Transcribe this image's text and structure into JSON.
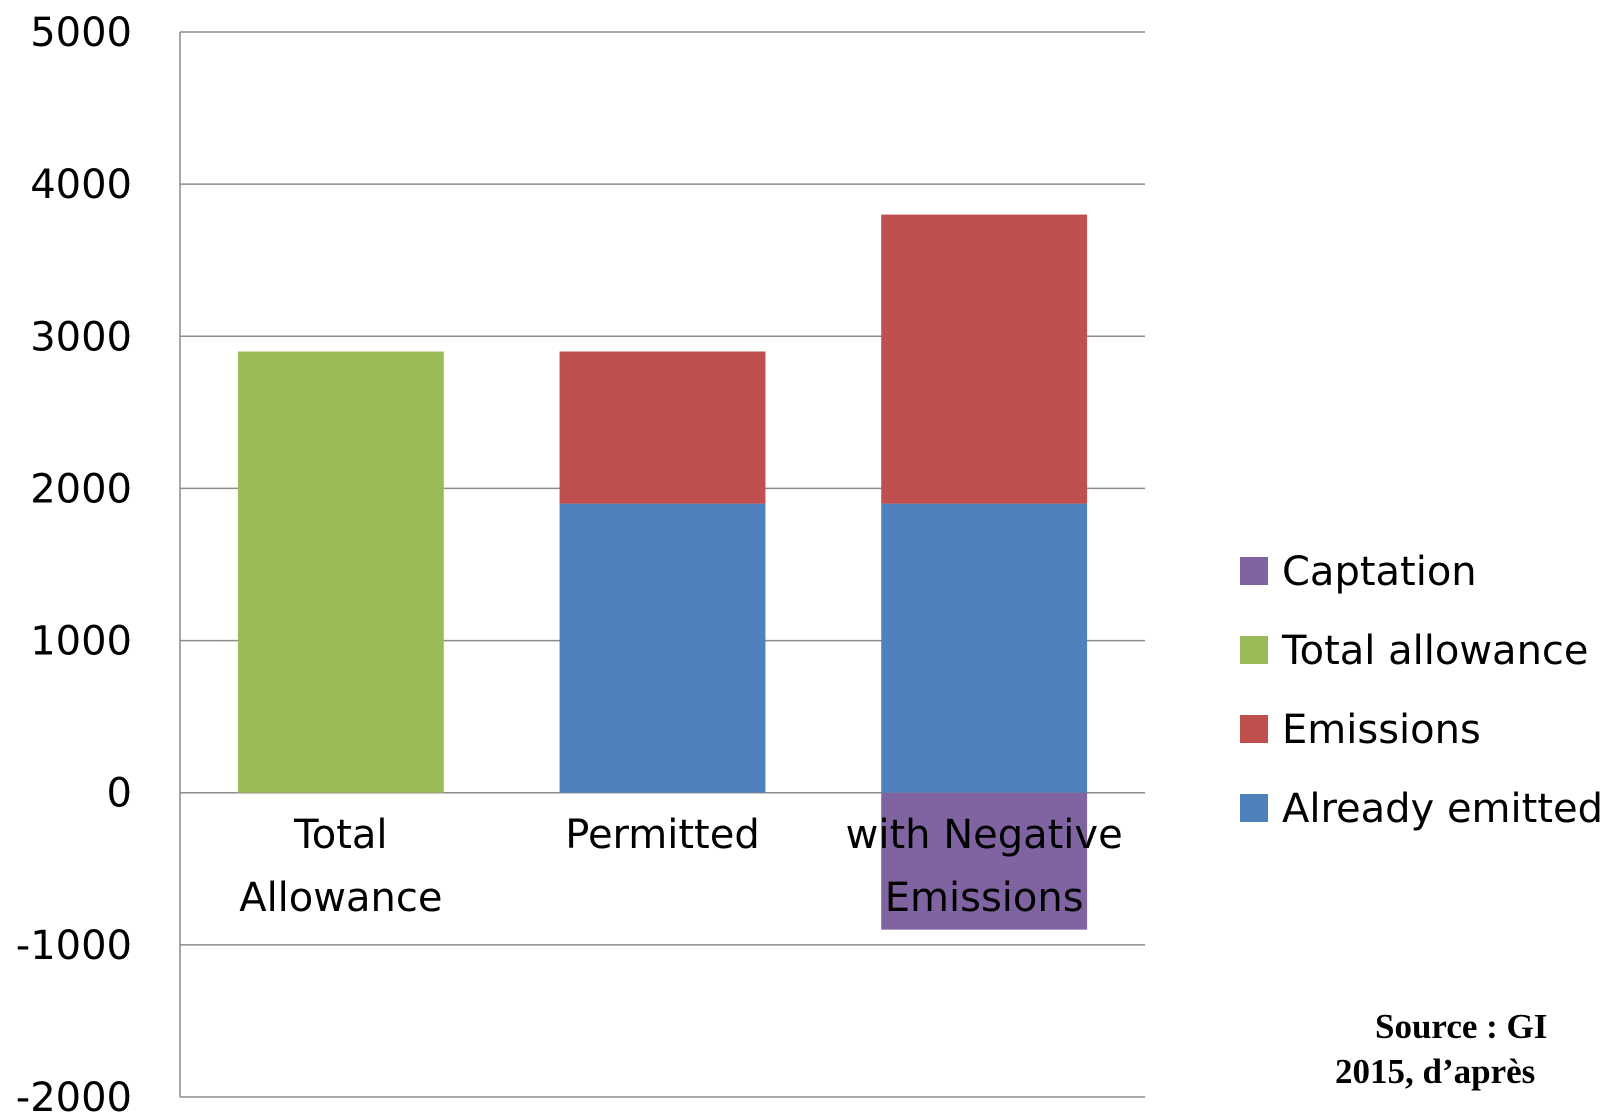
{
  "chart_data": {
    "type": "bar",
    "stacked": true,
    "categories": [
      [
        "Total",
        "Allowance"
      ],
      [
        "Permitted"
      ],
      [
        "with Negative",
        "Emissions"
      ]
    ],
    "series": [
      {
        "name": "Already emitted",
        "color": "#4f81bd",
        "values": [
          0,
          1900,
          1900
        ]
      },
      {
        "name": "Emissions",
        "color": "#c0504d",
        "values": [
          0,
          1000,
          1900
        ]
      },
      {
        "name": "Total allowance",
        "color": "#9bbb59",
        "values": [
          2900,
          0,
          0
        ]
      },
      {
        "name": "Captation",
        "color": "#8064a2",
        "values": [
          0,
          0,
          -900
        ]
      }
    ],
    "legend_order": [
      "Captation",
      "Total allowance",
      "Emissions",
      "Already emitted"
    ],
    "legend_position": "right",
    "ylim": [
      -2000,
      5000
    ],
    "yticks": [
      -2000,
      -1000,
      0,
      1000,
      2000,
      3000,
      4000,
      5000
    ],
    "grid": true,
    "title": "",
    "xlabel": "",
    "ylabel": ""
  },
  "source_note": [
    "Source : GI",
    "2015, d’après"
  ]
}
